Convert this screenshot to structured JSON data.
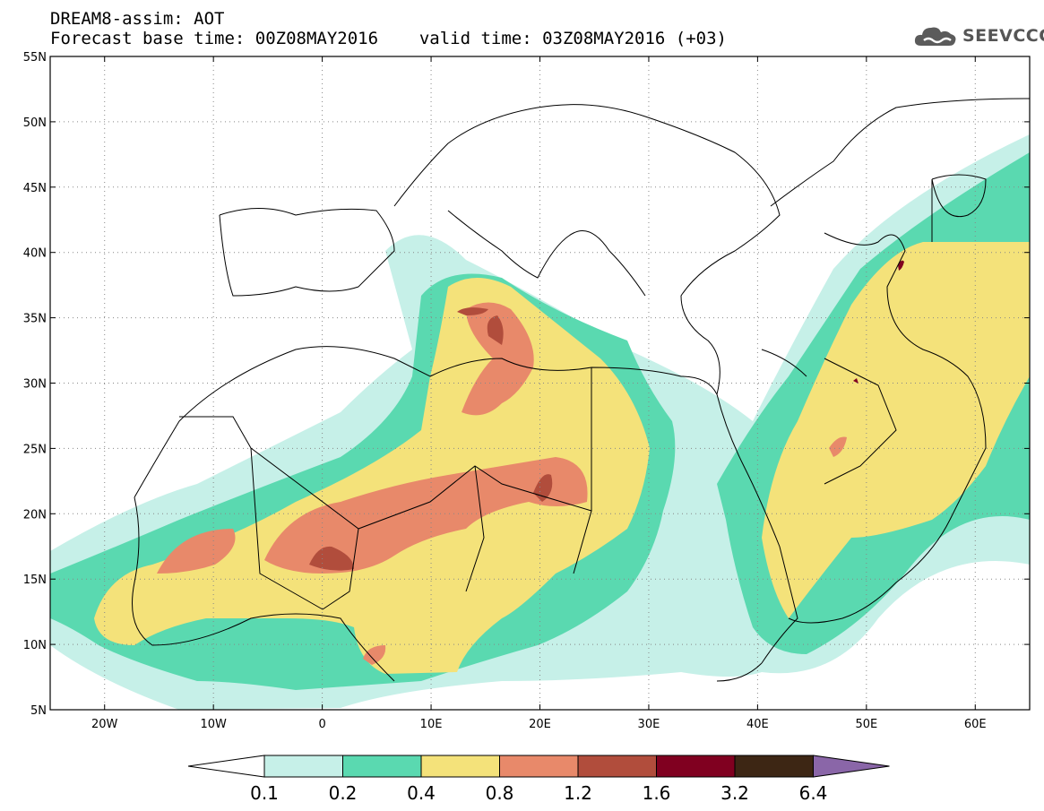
{
  "header": {
    "title_line1": "DREAM8-assim: AOT",
    "forecast_label": "Forecast base time: 00Z08MAY2016",
    "valid_label": "valid time: 03Z08MAY2016 (+03)"
  },
  "logo": {
    "text": "SEEVCCC",
    "icon": "cloud-icon"
  },
  "map": {
    "lon_ticks": [
      {
        "value": -20,
        "label": "20W"
      },
      {
        "value": -10,
        "label": "10W"
      },
      {
        "value": 0,
        "label": "0"
      },
      {
        "value": 10,
        "label": "10E"
      },
      {
        "value": 20,
        "label": "20E"
      },
      {
        "value": 30,
        "label": "30E"
      },
      {
        "value": 40,
        "label": "40E"
      },
      {
        "value": 50,
        "label": "50E"
      },
      {
        "value": 60,
        "label": "60E"
      }
    ],
    "lat_ticks": [
      {
        "value": 55,
        "label": "55N"
      },
      {
        "value": 50,
        "label": "50N"
      },
      {
        "value": 45,
        "label": "45N"
      },
      {
        "value": 40,
        "label": "40N"
      },
      {
        "value": 35,
        "label": "35N"
      },
      {
        "value": 30,
        "label": "30N"
      },
      {
        "value": 25,
        "label": "25N"
      },
      {
        "value": 20,
        "label": "20N"
      },
      {
        "value": 15,
        "label": "15N"
      },
      {
        "value": 10,
        "label": "10N"
      },
      {
        "value": 5,
        "label": "5N"
      }
    ],
    "lon_range": [
      -25,
      65
    ],
    "lat_range": [
      5,
      55
    ],
    "grid": true
  },
  "colorbar": {
    "labels": [
      "0.1",
      "0.2",
      "0.4",
      "0.8",
      "1.2",
      "1.6",
      "3.2",
      "6.4"
    ],
    "colors": [
      "#ffffff",
      "#c6f0e8",
      "#5ad9b0",
      "#f4e27a",
      "#e8896a",
      "#b14d3c",
      "#800020",
      "#3d2614",
      "#8a66a8"
    ]
  }
}
